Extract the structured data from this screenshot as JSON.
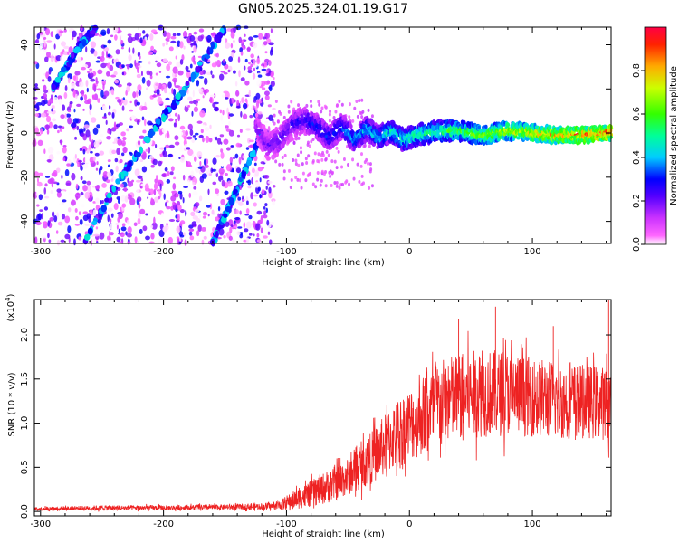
{
  "chart_data": [
    {
      "type": "heatmap",
      "title": "GN05.2025.324.01.19.G17",
      "xlabel": "Height of straight line (km)",
      "ylabel": "Frequency (Hz)",
      "xlim": [
        -305,
        164
      ],
      "ylim": [
        -50,
        48
      ],
      "xticks": [
        -300,
        -200,
        -100,
        0,
        100
      ],
      "xtick_labels": [
        "-300",
        "-200",
        "-100",
        "0",
        "100"
      ],
      "yticks": [
        -40,
        -20,
        0,
        20,
        40
      ],
      "ytick_labels": [
        "-40",
        "-20",
        "0",
        "20",
        "40"
      ],
      "colorbar": {
        "label": "Normalized spectral amplitude",
        "range": [
          0,
          1
        ],
        "ticks": [
          0.0,
          0.2,
          0.4,
          0.6,
          0.8
        ],
        "tick_labels": [
          "0.0",
          "0.2",
          "0.4",
          "0.6",
          "0.8"
        ],
        "colormap": [
          "#ffffff",
          "#ff00ff",
          "#8000ff",
          "#0000ff",
          "#00ffff",
          "#00ff00",
          "#ffff00",
          "#ff0000"
        ]
      },
      "ridge_main": {
        "x": [
          -125,
          -115,
          -105,
          -95,
          -85,
          -75,
          -65,
          -55,
          -45,
          -35,
          -25,
          -15,
          -5,
          5,
          15,
          25,
          40,
          60,
          80,
          100,
          120,
          140,
          160
        ],
        "y": [
          3,
          -6,
          -3,
          4,
          6,
          3,
          -2,
          3,
          -3,
          2,
          -2,
          1,
          -3,
          -1,
          0,
          1,
          1,
          -1,
          1,
          0,
          -1,
          -1,
          0
        ]
      },
      "ridges_diagonal": [
        {
          "x": [
            -290,
            -270,
            -255
          ],
          "y": [
            20,
            38,
            48
          ]
        },
        {
          "x": [
            -265,
            -240,
            -210,
            -180,
            -150
          ],
          "y": [
            -50,
            -25,
            0,
            22,
            48
          ]
        },
        {
          "x": [
            -160,
            -140,
            -120
          ],
          "y": [
            -50,
            -25,
            0
          ]
        }
      ]
    },
    {
      "type": "line",
      "xlabel": "Height of straight line (km)",
      "ylabel": "SNR (10 * v/v)",
      "yscale_label": "(x10",
      "yscale_exp": "4",
      "yscale_close": ")",
      "xlim": [
        -305,
        164
      ],
      "ylim": [
        -0.05,
        2.4
      ],
      "xticks": [
        -300,
        -200,
        -100,
        0,
        100
      ],
      "xtick_labels": [
        "-300",
        "-200",
        "-100",
        "0",
        "100"
      ],
      "yticks": [
        0.0,
        0.5,
        1.0,
        1.5,
        2.0
      ],
      "ytick_labels": [
        "0.0",
        "0.5",
        "1.0",
        "1.5",
        "2.0"
      ],
      "color": "#ee2222",
      "envelope": {
        "x": [
          -305,
          -250,
          -200,
          -150,
          -110,
          -100,
          -90,
          -80,
          -70,
          -60,
          -50,
          -40,
          -30,
          -20,
          -10,
          0,
          10,
          20,
          30,
          40,
          60,
          80,
          100,
          120,
          140,
          164
        ],
        "mean": [
          0.03,
          0.04,
          0.04,
          0.05,
          0.06,
          0.1,
          0.15,
          0.2,
          0.26,
          0.32,
          0.4,
          0.5,
          0.62,
          0.75,
          0.88,
          0.98,
          1.08,
          1.18,
          1.25,
          1.3,
          1.34,
          1.34,
          1.3,
          1.26,
          1.25,
          1.22
        ],
        "spread": [
          0.02,
          0.03,
          0.03,
          0.03,
          0.04,
          0.08,
          0.12,
          0.15,
          0.18,
          0.2,
          0.22,
          0.25,
          0.3,
          0.35,
          0.4,
          0.42,
          0.45,
          0.5,
          0.5,
          0.5,
          0.5,
          0.48,
          0.45,
          0.45,
          0.42,
          0.42
        ]
      },
      "peaks": [
        {
          "x": 70,
          "y": 2.32
        },
        {
          "x": 162,
          "y": 2.4
        },
        {
          "x": 117,
          "y": 2.1
        },
        {
          "x": 40,
          "y": 2.18
        }
      ]
    }
  ]
}
